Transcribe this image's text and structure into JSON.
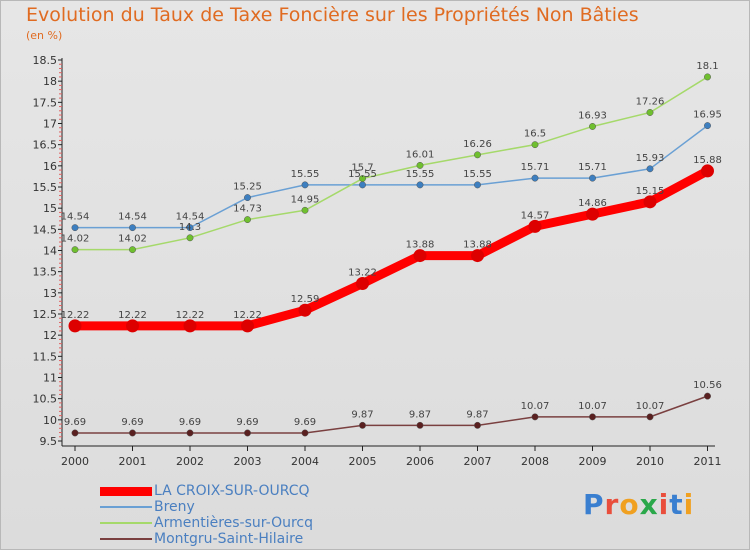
{
  "header": {
    "title": "Evolution du Taux de Taxe Foncière sur les Propriétés Non Bâties",
    "subtitle": "(en %)"
  },
  "logo": {
    "text": "Proxiti"
  },
  "chart_data": {
    "type": "line",
    "categories": [
      "2000",
      "2001",
      "2002",
      "2003",
      "2004",
      "2005",
      "2006",
      "2007",
      "2008",
      "2009",
      "2010",
      "2011"
    ],
    "ylim": [
      9.5,
      18.5
    ],
    "yticks": [
      "9.5",
      "10",
      "10.5",
      "11",
      "11.5",
      "12",
      "12.5",
      "13",
      "13.5",
      "14",
      "14.5",
      "15",
      "15.5",
      "16",
      "16.5",
      "17",
      "17.5",
      "18",
      "18.5"
    ],
    "grid": false,
    "legend_position": "bottom-left",
    "series": [
      {
        "name": "LA CROIX-SUR-OURCQ",
        "color": "#ff0000",
        "point_color": "#dd0000",
        "values": [
          12.22,
          12.22,
          12.22,
          12.22,
          12.59,
          13.22,
          13.88,
          13.88,
          14.57,
          14.86,
          15.15,
          15.88
        ],
        "labels": [
          "12.22",
          "12.22",
          "12.22",
          "12.22",
          "12.59",
          "13.22",
          "13.88",
          "13.88",
          "14.57",
          "14.86",
          "15.15",
          "15.88"
        ]
      },
      {
        "name": "Breny",
        "color": "#6aa0d4",
        "point_color": "#3d7fc0",
        "values": [
          14.54,
          14.54,
          14.54,
          15.25,
          15.55,
          15.55,
          15.55,
          15.55,
          15.71,
          15.71,
          15.93,
          16.95
        ],
        "labels": [
          "14.54",
          "14.54",
          "14.54",
          "15.25",
          "15.55",
          "15.55",
          "15.55",
          "15.55",
          "15.71",
          "15.71",
          "15.93",
          "16.95"
        ]
      },
      {
        "name": "Armentières-sur-Ourcq",
        "color": "#a5d96a",
        "point_color": "#6fbf2f",
        "values": [
          14.02,
          14.02,
          14.3,
          14.73,
          14.95,
          15.7,
          16.01,
          16.26,
          16.5,
          16.93,
          17.26,
          18.1
        ],
        "labels": [
          "14.02",
          "14.02",
          "14.3",
          "14.73",
          "14.95",
          "15.7",
          "16.01",
          "16.26",
          "16.5",
          "16.93",
          "17.26",
          "18.1"
        ]
      },
      {
        "name": "Montgru-Saint-Hilaire",
        "color": "#7a4040",
        "point_color": "#5a2020",
        "values": [
          9.69,
          9.69,
          9.69,
          9.69,
          9.69,
          9.87,
          9.87,
          9.87,
          10.07,
          10.07,
          10.07,
          10.56
        ],
        "labels": [
          "9.69",
          "9.69",
          "9.69",
          "9.69",
          "9.69",
          "9.87",
          "9.87",
          "9.87",
          "10.07",
          "10.07",
          "10.07",
          "10.56"
        ]
      }
    ]
  }
}
